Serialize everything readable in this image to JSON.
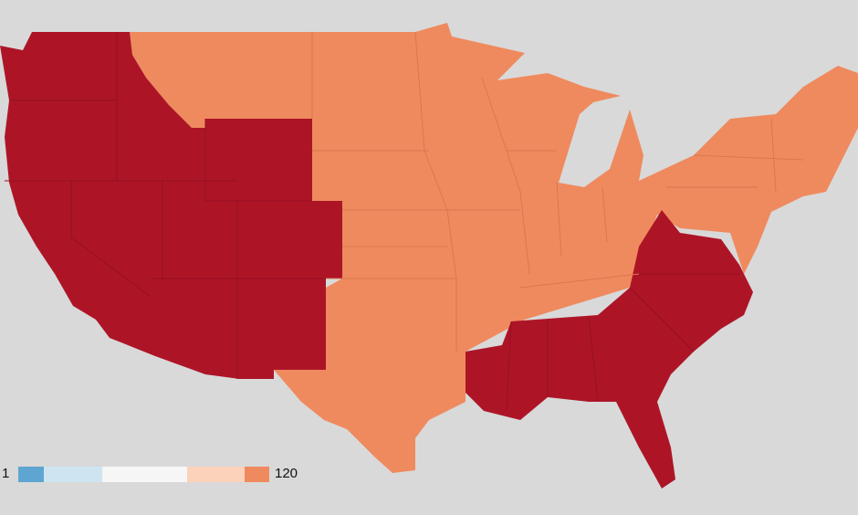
{
  "map": {
    "colors": [
      "#ad1527",
      "#ef8a5e"
    ]
  },
  "legend": {
    "min": 1,
    "max": 120,
    "colors": [
      "#5ea6d1",
      "#cfe4f1",
      "#f6f6f6",
      "#fdd2bb",
      "#ef8a5e"
    ]
  }
}
